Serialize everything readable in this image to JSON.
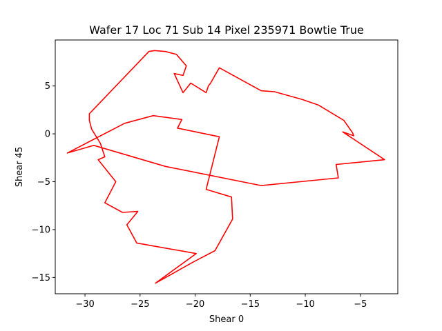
{
  "chart_data": {
    "type": "line",
    "title": "Wafer 17 Loc 71 Sub 14 Pixel 235971 Bowtie True",
    "xlabel": "Shear 0",
    "ylabel": "Shear 45",
    "xlim": [
      -32.7,
      -1.6
    ],
    "ylim": [
      -16.7,
      9.8
    ],
    "xticks": [
      -30,
      -25,
      -20,
      -15,
      -10,
      -5
    ],
    "yticks": [
      -15,
      -10,
      -5,
      0,
      5
    ],
    "xtick_labels": [
      "−30",
      "−25",
      "−20",
      "−15",
      "−10",
      "−5"
    ],
    "ytick_labels": [
      "−15",
      "−10",
      "−5",
      "0",
      "5"
    ],
    "grid": false,
    "series": [
      {
        "color": "#ff0000",
        "points": [
          [
            -5.7,
            0.1
          ],
          [
            -6.5,
            1.4
          ],
          [
            -8.8,
            3.0
          ],
          [
            -10.3,
            3.6
          ],
          [
            -12.8,
            4.4
          ],
          [
            -14.0,
            4.5
          ],
          [
            -17.8,
            6.9
          ],
          [
            -18.6,
            5.3
          ],
          [
            -18.8,
            5.0
          ],
          [
            -19.0,
            4.3
          ],
          [
            -20.4,
            5.3
          ],
          [
            -21.1,
            4.3
          ],
          [
            -21.9,
            6.3
          ],
          [
            -21.1,
            6.1
          ],
          [
            -20.8,
            7.1
          ],
          [
            -21.7,
            8.3
          ],
          [
            -22.7,
            8.6
          ],
          [
            -23.7,
            8.7
          ],
          [
            -24.2,
            8.6
          ],
          [
            -29.6,
            2.1
          ],
          [
            -29.6,
            1.4
          ],
          [
            -29.4,
            0.5
          ],
          [
            -28.6,
            -1.0
          ],
          [
            -28.2,
            -2.4
          ],
          [
            -28.8,
            -2.7
          ],
          [
            -27.2,
            -5.0
          ],
          [
            -28.2,
            -7.2
          ],
          [
            -26.6,
            -8.2
          ],
          [
            -25.2,
            -8.1
          ],
          [
            -26.2,
            -9.5
          ],
          [
            -25.3,
            -11.4
          ],
          [
            -19.9,
            -12.5
          ],
          [
            -23.6,
            -15.6
          ],
          [
            -20.2,
            -13.4
          ],
          [
            -18.2,
            -12.2
          ],
          [
            -16.6,
            -8.9
          ],
          [
            -16.7,
            -6.6
          ],
          [
            -19.0,
            -5.8
          ],
          [
            -17.8,
            -0.3
          ],
          [
            -21.6,
            0.6
          ],
          [
            -21.2,
            1.5
          ],
          [
            -23.8,
            1.9
          ],
          [
            -26.4,
            1.1
          ],
          [
            -31.6,
            -2.0
          ],
          [
            -29.2,
            -1.2
          ],
          [
            -22.7,
            -3.4
          ],
          [
            -14.0,
            -5.4
          ],
          [
            -7.0,
            -4.6
          ],
          [
            -7.2,
            -3.2
          ],
          [
            -2.8,
            -2.7
          ],
          [
            -6.6,
            0.2
          ],
          [
            -5.6,
            -0.2
          ],
          [
            -5.7,
            0.1
          ]
        ]
      }
    ]
  }
}
